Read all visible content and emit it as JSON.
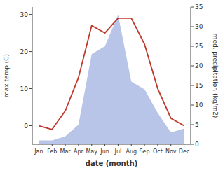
{
  "chart_data": {
    "type": "line",
    "xlabel": "date (month)",
    "ylabel": "max temp (C)",
    "y2label": "med. precipitation (kg/m2)",
    "categories": [
      "Jan",
      "Feb",
      "Mar",
      "Apr",
      "May",
      "Jun",
      "Jul",
      "Aug",
      "Sep",
      "Oct",
      "Nov",
      "Dec"
    ],
    "series": [
      {
        "type": "area",
        "axis": "y2",
        "color": "#b8c4e8",
        "values": [
          1,
          1,
          2,
          5,
          23,
          25,
          33,
          16,
          14,
          8,
          3,
          4
        ]
      },
      {
        "type": "line",
        "color": "#c0392b",
        "values": [
          0,
          -1,
          4,
          13,
          27,
          25,
          29,
          29,
          22,
          10,
          2,
          0
        ]
      }
    ],
    "ylim": [
      -5,
      32
    ],
    "yticks": [
      0,
      10,
      20,
      30
    ],
    "y2lim": [
      0,
      35
    ],
    "y2ticks": [
      0,
      5,
      10,
      15,
      20,
      25,
      30,
      35
    ],
    "grid": false
  }
}
